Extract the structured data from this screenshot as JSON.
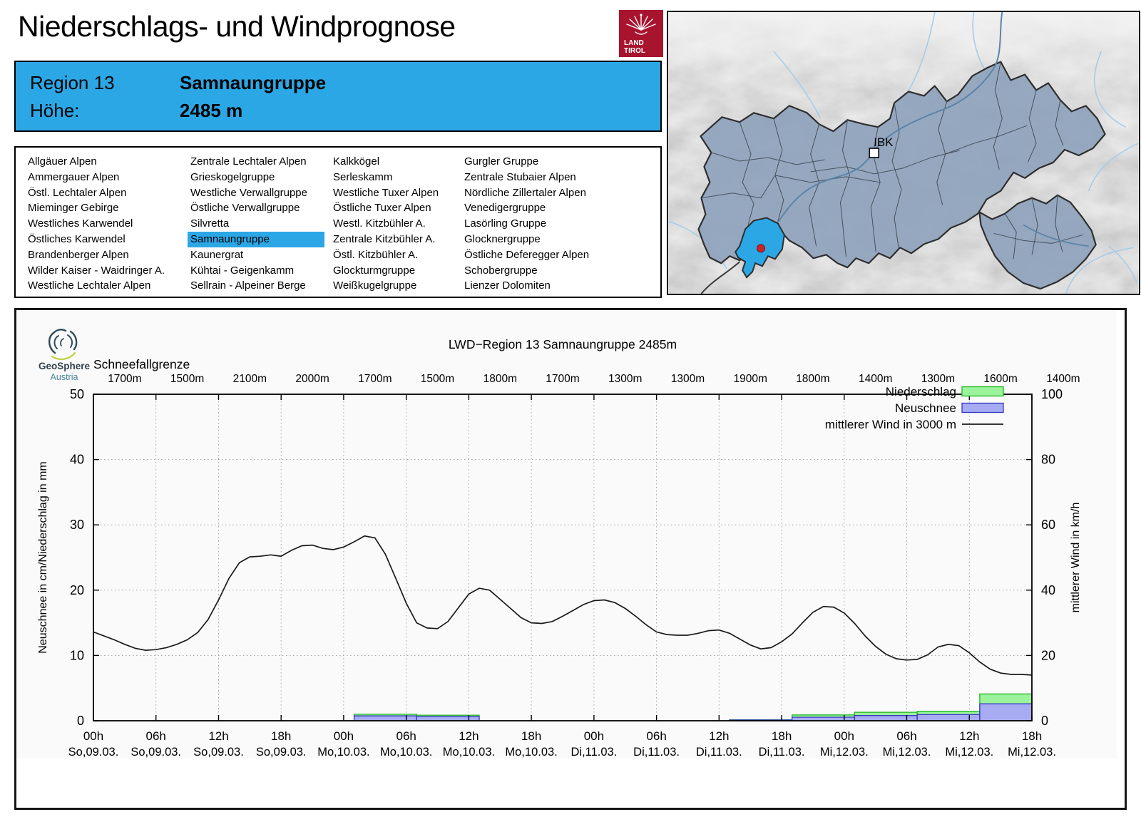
{
  "page": {
    "title": "Niederschlags- und Windprognose"
  },
  "tirol_logo": {
    "line1": "LAND",
    "line2": "TIROL",
    "color": "#A8132E"
  },
  "region_header": {
    "region_label": "Region 13",
    "region_name": "Samnaungruppe",
    "altitude_label": "Höhe:",
    "altitude_value": "2485 m",
    "accent_color": "#2BA7E6"
  },
  "region_list": {
    "selected": "Samnaungruppe",
    "columns": [
      [
        "Allgäuer Alpen",
        "Ammergauer Alpen",
        "Östl. Lechtaler Alpen",
        "Mieminger Gebirge",
        "Westliches Karwendel",
        "Östliches Karwendel",
        "Brandenberger Alpen",
        "Wilder Kaiser - Waidringer A.",
        "Westliche Lechtaler Alpen"
      ],
      [
        "Zentrale Lechtaler Alpen",
        "Grieskogelgruppe",
        "Westliche Verwallgruppe",
        "Östliche Verwallgruppe",
        "Silvretta",
        "Samnaungruppe",
        "Kaunergrat",
        "Kühtai - Geigenkamm",
        "Sellrain - Alpeiner Berge"
      ],
      [
        "Kalkkögel",
        "Serleskamm",
        "Westliche Tuxer Alpen",
        "Östliche Tuxer Alpen",
        "Westl. Kitzbühler A.",
        "Zentrale Kitzbühler A.",
        "Östl. Kitzbühler A.",
        "Glockturmgruppe",
        "Weißkugelgruppe"
      ],
      [
        "Gurgler Gruppe",
        "Zentrale Stubaier Alpen",
        "Nördliche Zillertaler Alpen",
        "Venedigergruppe",
        "Lasörling Gruppe",
        "Glocknergruppe",
        "Östliche Deferegger Alpen",
        "Schobergruppe",
        "Lienzer Dolomiten"
      ]
    ]
  },
  "map": {
    "city_label": "IBK",
    "highlight_color": "#2BA7E6",
    "region_fill": "#8FA3BC"
  },
  "geosphere": {
    "name": "GeoSphere",
    "country": "Austria"
  },
  "chart_data": {
    "type": "mixed bar + line",
    "title": "LWD−Region 13 Samnaungruppe 2485m",
    "snowline_label": "Schneefallgrenze",
    "snowline_values": [
      "1700m",
      "1500m",
      "2100m",
      "2000m",
      "1700m",
      "1500m",
      "1800m",
      "1700m",
      "1300m",
      "1300m",
      "1900m",
      "1800m",
      "1400m",
      "1300m",
      "1600m",
      "1400m"
    ],
    "ylabel_left": "Neuschnee in cm/Niederschlag in mm",
    "ylabel_right": "mittlerer Wind in km/h",
    "ylim_left": [
      0,
      50
    ],
    "ylim_right": [
      0,
      100
    ],
    "yticks_left": [
      0,
      10,
      20,
      30,
      40,
      50
    ],
    "yticks_right": [
      0,
      20,
      40,
      60,
      80,
      100
    ],
    "grid": "dotted, horizontal at left ticks and vertical at 6h ticks",
    "x_span_hours": 90,
    "xticks": [
      {
        "t": "00h",
        "d": "So,09.03."
      },
      {
        "t": "06h",
        "d": "So,09.03."
      },
      {
        "t": "12h",
        "d": "So,09.03."
      },
      {
        "t": "18h",
        "d": "So,09.03."
      },
      {
        "t": "00h",
        "d": "Mo,10.03."
      },
      {
        "t": "06h",
        "d": "Mo,10.03."
      },
      {
        "t": "12h",
        "d": "Mo,10.03."
      },
      {
        "t": "18h",
        "d": "Mo,10.03."
      },
      {
        "t": "00h",
        "d": "Di,11.03."
      },
      {
        "t": "06h",
        "d": "Di,11.03."
      },
      {
        "t": "12h",
        "d": "Di,11.03."
      },
      {
        "t": "18h",
        "d": "Di,11.03."
      },
      {
        "t": "00h",
        "d": "Mi,12.03."
      },
      {
        "t": "06h",
        "d": "Mi,12.03."
      },
      {
        "t": "12h",
        "d": "Mi,12.03."
      },
      {
        "t": "18h",
        "d": "Mi,12.03."
      }
    ],
    "legend": [
      {
        "label": "Niederschlag",
        "swatch": "box-green"
      },
      {
        "label": "Neuschnee",
        "swatch": "box-blue"
      },
      {
        "label": "mittlerer Wind in 3000 m",
        "swatch": "line"
      }
    ],
    "colors": {
      "precip_fill": "#9BF49B",
      "precip_stroke": "#20B520",
      "snow_fill": "#A7ABF2",
      "snow_stroke": "#3636C2",
      "wind_line": "#1a1a1a"
    },
    "bars_6h": [
      {
        "from_h": 25,
        "to_h": 31,
        "niederschlag_mm": 1.0,
        "neuschnee_cm": 0.75
      },
      {
        "from_h": 31,
        "to_h": 37,
        "niederschlag_mm": 0.85,
        "neuschnee_cm": 0.65
      },
      {
        "from_h": 61,
        "to_h": 67,
        "niederschlag_mm": 0.15,
        "neuschnee_cm": 0.12
      },
      {
        "from_h": 67,
        "to_h": 73,
        "niederschlag_mm": 0.9,
        "neuschnee_cm": 0.55
      },
      {
        "from_h": 73,
        "to_h": 79,
        "niederschlag_mm": 1.3,
        "neuschnee_cm": 0.8
      },
      {
        "from_h": 79,
        "to_h": 85,
        "niederschlag_mm": 1.45,
        "neuschnee_cm": 0.95
      },
      {
        "from_h": 85,
        "to_h": 91,
        "niederschlag_mm": 4.1,
        "neuschnee_cm": 2.6
      }
    ],
    "wind_kmh": {
      "start_hour": 0,
      "step_hours": 1,
      "values": [
        27.2,
        26.0,
        24.8,
        23.4,
        22.2,
        21.6,
        21.8,
        22.4,
        23.4,
        24.8,
        27.0,
        31.0,
        37.0,
        43.6,
        48.4,
        50.2,
        50.4,
        50.8,
        50.4,
        52.2,
        53.6,
        53.8,
        52.8,
        52.4,
        53.2,
        54.8,
        56.6,
        56.0,
        51.0,
        43.6,
        36.0,
        30.0,
        28.4,
        28.2,
        30.4,
        34.6,
        38.8,
        40.6,
        40.0,
        37.2,
        34.4,
        31.6,
        30.0,
        29.8,
        30.4,
        32.0,
        33.8,
        35.6,
        36.8,
        37.0,
        36.2,
        34.4,
        32.0,
        29.4,
        27.2,
        26.4,
        26.2,
        26.2,
        26.8,
        27.6,
        27.8,
        26.8,
        25.0,
        23.2,
        22.0,
        22.4,
        24.2,
        26.6,
        30.0,
        33.2,
        35.0,
        34.8,
        33.0,
        29.8,
        26.0,
        22.8,
        20.4,
        19.0,
        18.6,
        18.8,
        20.2,
        22.6,
        23.4,
        23.0,
        20.8,
        18.0,
        15.8,
        14.6,
        14.2,
        14.2,
        14.0
      ]
    }
  }
}
